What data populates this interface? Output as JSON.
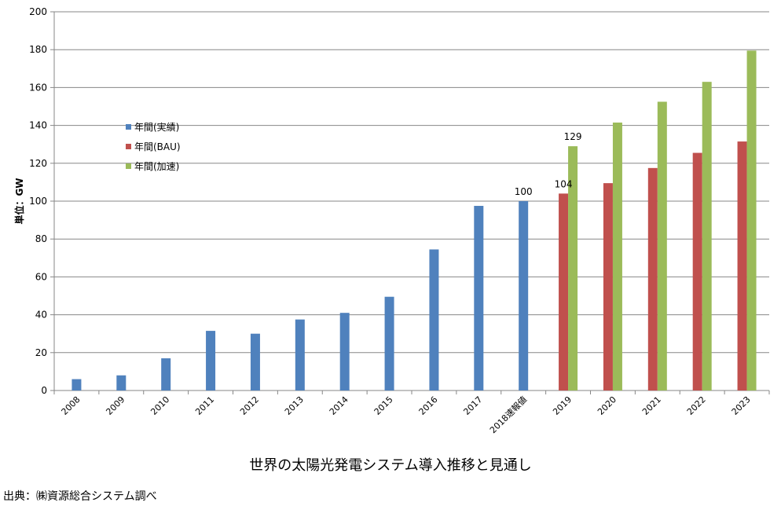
{
  "chart_data": {
    "type": "bar",
    "title": "世界の太陽光発電システム導入推移と見通し",
    "source": "出典：㈱資源総合システム調べ",
    "ylabel": "単位：GW",
    "xlabel": "",
    "ylim": [
      0,
      200
    ],
    "yticks": [
      0,
      20,
      40,
      60,
      80,
      100,
      120,
      140,
      160,
      180,
      200
    ],
    "grid": true,
    "legend_position": "left-middle",
    "categories": [
      "2008",
      "2009",
      "2010",
      "2011",
      "2012",
      "2013",
      "2014",
      "2015",
      "2016",
      "2017",
      "2018速報値",
      "2019",
      "2020",
      "2021",
      "2022",
      "2023"
    ],
    "series": [
      {
        "name": "年間(実績)",
        "color": "#4f81bd",
        "values": [
          6,
          8,
          17,
          31.5,
          30,
          37.5,
          41,
          49.5,
          74.5,
          97.5,
          100,
          null,
          null,
          null,
          null,
          null
        ]
      },
      {
        "name": "年間(BAU)",
        "color": "#c0504d",
        "values": [
          null,
          null,
          null,
          null,
          null,
          null,
          null,
          null,
          null,
          null,
          null,
          104,
          109.5,
          117.5,
          125.5,
          131.5
        ]
      },
      {
        "name": "年間(加速)",
        "color": "#9bbb59",
        "values": [
          null,
          null,
          null,
          null,
          null,
          null,
          null,
          null,
          null,
          null,
          null,
          129,
          141.5,
          152.5,
          163,
          179.5
        ]
      }
    ],
    "data_labels": [
      {
        "category": "2018速報値",
        "series": "年間(実績)",
        "text": "100"
      },
      {
        "category": "2019",
        "series": "年間(BAU)",
        "text": "104"
      },
      {
        "category": "2019",
        "series": "年間(加速)",
        "text": "129"
      }
    ]
  }
}
